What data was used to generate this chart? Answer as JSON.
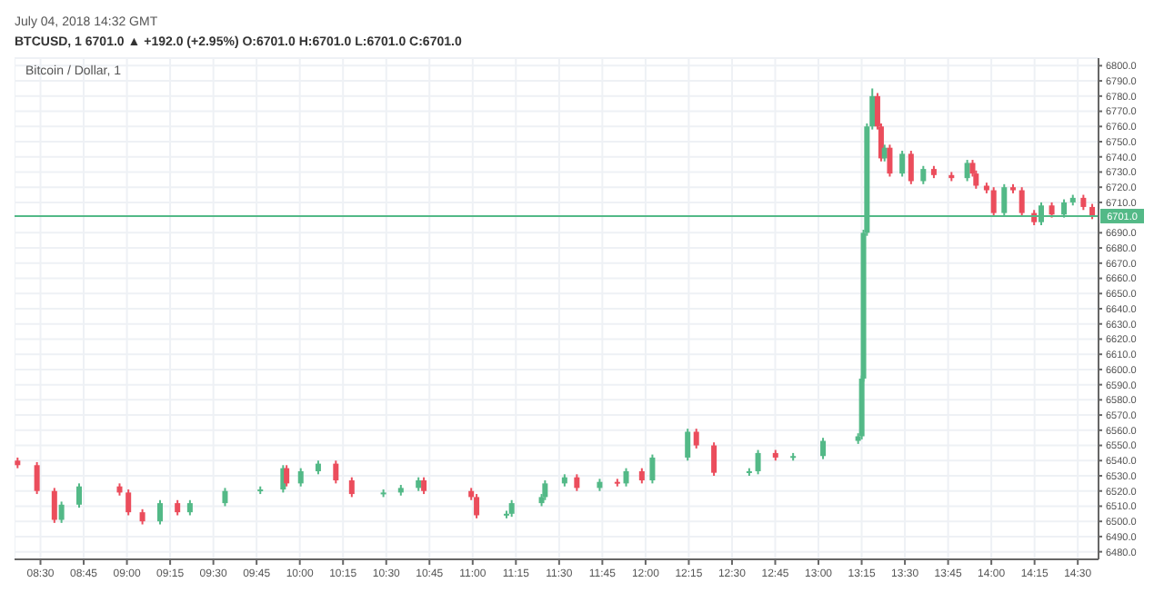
{
  "chart_data": {
    "type": "candlestick",
    "title": "Bitcoin / Dollar, 1",
    "subtitle": "BTCUSD, 1 6701.0 ▲ +192.0 (+2.95%) O:6701.0 H:6701.0 L:6701.0 C:6701.0",
    "annotations": [
      "July 04, 2018 14:32 GMT"
    ],
    "x": [
      8.368,
      8.48,
      8.581,
      8.622,
      8.724,
      8.958,
      9.009,
      9.09,
      9.192,
      9.293,
      9.365,
      9.568,
      9.772,
      9.904,
      9.924,
      10.006,
      10.107,
      10.209,
      10.301,
      10.484,
      10.585,
      10.687,
      10.718,
      10.992,
      11.023,
      11.196,
      11.226,
      11.399,
      11.419,
      11.532,
      11.603,
      11.735,
      11.837,
      11.888,
      11.979,
      12.04,
      12.244,
      12.294,
      12.396,
      12.6,
      12.651,
      12.752,
      12.854,
      13.027,
      13.23,
      13.251,
      13.261,
      13.281,
      13.312,
      13.342,
      13.363,
      13.383,
      13.413,
      13.485,
      13.536,
      13.607,
      13.668,
      13.77,
      13.861,
      13.892,
      13.912,
      13.973,
      14.014,
      14.075,
      14.126,
      14.177,
      14.248,
      14.289,
      14.35,
      14.421,
      14.472,
      14.533,
      14.584
    ],
    "ohlc": [
      [
        6540,
        6542,
        6535,
        6537
      ],
      [
        6537,
        6539,
        6518,
        6520
      ],
      [
        6520,
        6522,
        6499,
        6501
      ],
      [
        6501,
        6513,
        6499,
        6511
      ],
      [
        6511,
        6525,
        6509,
        6523
      ],
      [
        6523,
        6525,
        6517,
        6519
      ],
      [
        6519,
        6521,
        6504,
        6506
      ],
      [
        6506,
        6508,
        6498,
        6500
      ],
      [
        6500,
        6514,
        6498,
        6512
      ],
      [
        6512,
        6514,
        6504,
        6506
      ],
      [
        6506,
        6514,
        6504,
        6512
      ],
      [
        6512,
        6522,
        6510,
        6520
      ],
      [
        6520,
        6523,
        6518,
        6521
      ],
      [
        6521,
        6537,
        6519,
        6535
      ],
      [
        6535,
        6537,
        6523,
        6525
      ],
      [
        6525,
        6535,
        6523,
        6533
      ],
      [
        6533,
        6540,
        6531,
        6538
      ],
      [
        6538,
        6540,
        6525,
        6527
      ],
      [
        6527,
        6529,
        6516,
        6518
      ],
      [
        6518,
        6521,
        6516,
        6519
      ],
      [
        6519,
        6524,
        6517,
        6522
      ],
      [
        6522,
        6529,
        6520,
        6527
      ],
      [
        6527,
        6529,
        6518,
        6520
      ],
      [
        6520,
        6522,
        6514,
        6516
      ],
      [
        6516,
        6518,
        6502,
        6504
      ],
      [
        6504,
        6507,
        6502,
        6505
      ],
      [
        6505,
        6514,
        6503,
        6512
      ],
      [
        6512,
        6518,
        6510,
        6516
      ],
      [
        6516,
        6527,
        6514,
        6525
      ],
      [
        6525,
        6531,
        6523,
        6529
      ],
      [
        6529,
        6531,
        6520,
        6522
      ],
      [
        6522,
        6528,
        6520,
        6526
      ],
      [
        6526,
        6528,
        6523,
        6525
      ],
      [
        6525,
        6535,
        6523,
        6533
      ],
      [
        6533,
        6535,
        6525,
        6527
      ],
      [
        6527,
        6544,
        6525,
        6542
      ],
      [
        6542,
        6561,
        6540,
        6559
      ],
      [
        6559,
        6561,
        6548,
        6550
      ],
      [
        6550,
        6552,
        6530,
        6532
      ],
      [
        6532,
        6535,
        6530,
        6533
      ],
      [
        6533,
        6547,
        6531,
        6545
      ],
      [
        6545,
        6547,
        6540,
        6542
      ],
      [
        6542,
        6545,
        6540,
        6543
      ],
      [
        6543,
        6555,
        6541,
        6553
      ],
      [
        6553,
        6558,
        6551,
        6556
      ],
      [
        6556,
        6596,
        6554,
        6594
      ],
      [
        6594,
        6692,
        6592,
        6690
      ],
      [
        6690,
        6762,
        6688,
        6760
      ],
      [
        6760,
        6785,
        6758,
        6780
      ],
      [
        6780,
        6782,
        6758,
        6760
      ],
      [
        6760,
        6762,
        6737,
        6739
      ],
      [
        6739,
        6748,
        6737,
        6746
      ],
      [
        6746,
        6748,
        6727,
        6729
      ],
      [
        6729,
        6744,
        6727,
        6742
      ],
      [
        6742,
        6744,
        6722,
        6724
      ],
      [
        6724,
        6734,
        6722,
        6732
      ],
      [
        6732,
        6734,
        6726,
        6728
      ],
      [
        6728,
        6730,
        6724,
        6726
      ],
      [
        6726,
        6738,
        6724,
        6736
      ],
      [
        6736,
        6738,
        6727,
        6729
      ],
      [
        6729,
        6731,
        6719,
        6721
      ],
      [
        6721,
        6723,
        6716,
        6718
      ],
      [
        6718,
        6720,
        6701,
        6703
      ],
      [
        6703,
        6722,
        6701,
        6720
      ],
      [
        6720,
        6722,
        6716,
        6718
      ],
      [
        6718,
        6720,
        6701,
        6703
      ],
      [
        6703,
        6705,
        6695,
        6697
      ],
      [
        6697,
        6710,
        6695,
        6708
      ],
      [
        6708,
        6710,
        6700,
        6702
      ],
      [
        6702,
        6712,
        6700,
        6710
      ],
      [
        6710,
        6715,
        6708,
        6713
      ],
      [
        6713,
        6715,
        6705,
        6707
      ],
      [
        6707,
        6709,
        6699,
        6701
      ]
    ],
    "colors": [
      "#eb4d5c",
      "#eb4d5c",
      "#eb4d5c",
      "#53b987",
      "#53b987",
      "#eb4d5c",
      "#eb4d5c",
      "#eb4d5c",
      "#53b987",
      "#eb4d5c",
      "#53b987",
      "#53b987",
      "#53b987",
      "#53b987",
      "#eb4d5c",
      "#53b987",
      "#53b987",
      "#eb4d5c",
      "#eb4d5c",
      "#53b987",
      "#53b987",
      "#53b987",
      "#eb4d5c",
      "#eb4d5c",
      "#eb4d5c",
      "#53b987",
      "#53b987",
      "#53b987",
      "#53b987",
      "#53b987",
      "#eb4d5c",
      "#53b987",
      "#eb4d5c",
      "#53b987",
      "#eb4d5c",
      "#53b987",
      "#53b987",
      "#eb4d5c",
      "#eb4d5c",
      "#53b987",
      "#53b987",
      "#eb4d5c",
      "#53b987",
      "#53b987",
      "#53b987",
      "#53b987",
      "#53b987",
      "#53b987",
      "#53b987",
      "#eb4d5c",
      "#eb4d5c",
      "#53b987",
      "#eb4d5c",
      "#53b987",
      "#eb4d5c",
      "#53b987",
      "#eb4d5c",
      "#eb4d5c",
      "#53b987",
      "#eb4d5c",
      "#eb4d5c",
      "#eb4d5c",
      "#eb4d5c",
      "#53b987",
      "#eb4d5c",
      "#eb4d5c",
      "#eb4d5c",
      "#53b987",
      "#eb4d5c",
      "#53b987",
      "#53b987",
      "#eb4d5c",
      "#eb4d5c"
    ],
    "xlim": [
      8.35,
      14.62
    ],
    "xticks": [
      {
        "value": 8.5,
        "label": "08:30"
      },
      {
        "value": 8.75,
        "label": "08:45"
      },
      {
        "value": 9,
        "label": "09:00"
      },
      {
        "value": 9.25,
        "label": "09:15"
      },
      {
        "value": 9.5,
        "label": "09:30"
      },
      {
        "value": 9.75,
        "label": "09:45"
      },
      {
        "value": 10,
        "label": "10:00"
      },
      {
        "value": 10.25,
        "label": "10:15"
      },
      {
        "value": 10.5,
        "label": "10:30"
      },
      {
        "value": 10.75,
        "label": "10:45"
      },
      {
        "value": 11,
        "label": "11:00"
      },
      {
        "value": 11.25,
        "label": "11:15"
      },
      {
        "value": 11.5,
        "label": "11:30"
      },
      {
        "value": 11.75,
        "label": "11:45"
      },
      {
        "value": 12,
        "label": "12:00"
      },
      {
        "value": 12.25,
        "label": "12:15"
      },
      {
        "value": 12.5,
        "label": "12:30"
      },
      {
        "value": 12.75,
        "label": "12:45"
      },
      {
        "value": 13,
        "label": "13:00"
      },
      {
        "value": 13.25,
        "label": "13:15"
      },
      {
        "value": 13.5,
        "label": "13:30"
      },
      {
        "value": 13.75,
        "label": "13:45"
      },
      {
        "value": 14,
        "label": "14:00"
      },
      {
        "value": 14.25,
        "label": "14:15"
      },
      {
        "value": 14.5,
        "label": "14:30"
      }
    ],
    "ylim": [
      6475,
      6805
    ],
    "yticks": [
      {
        "value": 6480,
        "label": "6480.0"
      },
      {
        "value": 6490,
        "label": "6490.0"
      },
      {
        "value": 6500,
        "label": "6500.0"
      },
      {
        "value": 6510,
        "label": "6510.0"
      },
      {
        "value": 6520,
        "label": "6520.0"
      },
      {
        "value": 6530,
        "label": "6530.0"
      },
      {
        "value": 6540,
        "label": "6540.0"
      },
      {
        "value": 6550,
        "label": "6550.0"
      },
      {
        "value": 6560,
        "label": "6560.0"
      },
      {
        "value": 6570,
        "label": "6570.0"
      },
      {
        "value": 6580,
        "label": "6580.0"
      },
      {
        "value": 6590,
        "label": "6590.0"
      },
      {
        "value": 6600,
        "label": "6600.0"
      },
      {
        "value": 6610,
        "label": "6610.0"
      },
      {
        "value": 6620,
        "label": "6620.0"
      },
      {
        "value": 6630,
        "label": "6630.0"
      },
      {
        "value": 6640,
        "label": "6640.0"
      },
      {
        "value": 6650,
        "label": "6650.0"
      },
      {
        "value": 6660,
        "label": "6660.0"
      },
      {
        "value": 6670,
        "label": "6670.0"
      },
      {
        "value": 6680,
        "label": "6680.0"
      },
      {
        "value": 6690,
        "label": "6690.0"
      },
      {
        "value": 6710,
        "label": "6710.0"
      },
      {
        "value": 6720,
        "label": "6720.0"
      },
      {
        "value": 6730,
        "label": "6730.0"
      },
      {
        "value": 6740,
        "label": "6740.0"
      },
      {
        "value": 6750,
        "label": "6750.0"
      },
      {
        "value": 6760,
        "label": "6760.0"
      },
      {
        "value": 6770,
        "label": "6770.0"
      },
      {
        "value": 6780,
        "label": "6780.0"
      },
      {
        "value": 6790,
        "label": "6790.0"
      },
      {
        "value": 6800,
        "label": "6800.0"
      }
    ],
    "ref_lines": [
      {
        "axis": "y",
        "value": 6701,
        "label": "6701.0",
        "color": "#53b987"
      }
    ],
    "grid": true
  }
}
